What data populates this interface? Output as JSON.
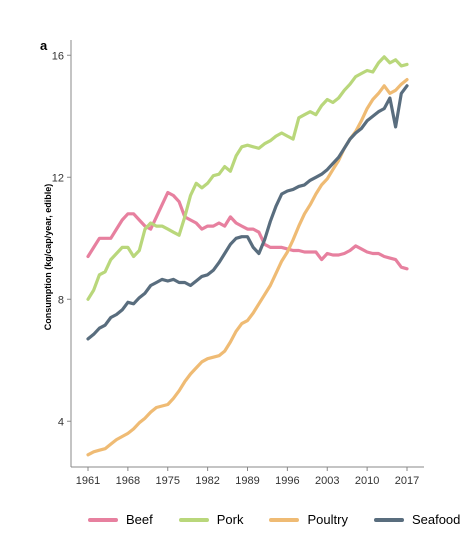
{
  "panel_label": "a",
  "colors": {
    "Beef": "#e7809f",
    "Pork": "#b9d77b",
    "Poultry": "#efbb74",
    "Seafood": "#596d7e"
  },
  "chart_data": {
    "type": "line",
    "title": "",
    "xlabel": "",
    "ylabel": "Consumption (kg/cap/year, edible)",
    "xlim": [
      1961,
      2017
    ],
    "ylim": [
      2.5,
      16.5
    ],
    "xticks": [
      1961,
      1968,
      1975,
      1982,
      1989,
      1996,
      2003,
      2010,
      2017
    ],
    "yticks": [
      4,
      8,
      12,
      16
    ],
    "grid": false,
    "legend_position": "bottom",
    "x": [
      1961,
      1962,
      1963,
      1964,
      1965,
      1966,
      1967,
      1968,
      1969,
      1970,
      1971,
      1972,
      1973,
      1974,
      1975,
      1976,
      1977,
      1978,
      1979,
      1980,
      1981,
      1982,
      1983,
      1984,
      1985,
      1986,
      1987,
      1988,
      1989,
      1990,
      1991,
      1992,
      1993,
      1994,
      1995,
      1996,
      1997,
      1998,
      1999,
      2000,
      2001,
      2002,
      2003,
      2004,
      2005,
      2006,
      2007,
      2008,
      2009,
      2010,
      2011,
      2012,
      2013,
      2014,
      2015,
      2016,
      2017
    ],
    "series": [
      {
        "name": "Beef",
        "values": [
          9.4,
          9.7,
          10.0,
          10.0,
          10.0,
          10.3,
          10.6,
          10.8,
          10.8,
          10.6,
          10.4,
          10.3,
          10.7,
          11.1,
          11.5,
          11.4,
          11.2,
          10.7,
          10.6,
          10.5,
          10.3,
          10.4,
          10.4,
          10.5,
          10.4,
          10.7,
          10.5,
          10.4,
          10.3,
          10.3,
          10.2,
          9.8,
          9.7,
          9.7,
          9.7,
          9.65,
          9.6,
          9.6,
          9.55,
          9.55,
          9.55,
          9.3,
          9.5,
          9.45,
          9.45,
          9.5,
          9.6,
          9.75,
          9.65,
          9.55,
          9.5,
          9.5,
          9.4,
          9.35,
          9.3,
          9.05,
          9.0
        ]
      },
      {
        "name": "Pork",
        "values": [
          8.0,
          8.3,
          8.8,
          8.9,
          9.3,
          9.5,
          9.7,
          9.7,
          9.4,
          9.6,
          10.3,
          10.5,
          10.4,
          10.4,
          10.3,
          10.2,
          10.1,
          10.7,
          11.4,
          11.8,
          11.65,
          11.8,
          12.05,
          12.1,
          12.35,
          12.2,
          12.7,
          13.0,
          13.05,
          13.0,
          12.95,
          13.1,
          13.2,
          13.35,
          13.45,
          13.35,
          13.25,
          13.95,
          14.05,
          14.15,
          14.05,
          14.35,
          14.55,
          14.45,
          14.6,
          14.85,
          15.05,
          15.3,
          15.4,
          15.5,
          15.45,
          15.75,
          15.95,
          15.75,
          15.85,
          15.65,
          15.7
        ]
      },
      {
        "name": "Poultry",
        "values": [
          2.9,
          3.0,
          3.05,
          3.1,
          3.25,
          3.4,
          3.5,
          3.6,
          3.75,
          3.95,
          4.1,
          4.3,
          4.45,
          4.5,
          4.55,
          4.75,
          5.0,
          5.3,
          5.55,
          5.75,
          5.95,
          6.05,
          6.1,
          6.15,
          6.3,
          6.6,
          6.95,
          7.2,
          7.3,
          7.55,
          7.85,
          8.15,
          8.45,
          8.85,
          9.25,
          9.55,
          9.95,
          10.4,
          10.8,
          11.1,
          11.45,
          11.75,
          11.95,
          12.25,
          12.55,
          12.95,
          13.25,
          13.5,
          13.85,
          14.25,
          14.55,
          14.75,
          15.0,
          14.75,
          14.85,
          15.05,
          15.2
        ]
      },
      {
        "name": "Seafood",
        "values": [
          6.7,
          6.85,
          7.05,
          7.15,
          7.4,
          7.5,
          7.65,
          7.9,
          7.85,
          8.05,
          8.2,
          8.45,
          8.55,
          8.65,
          8.6,
          8.65,
          8.55,
          8.55,
          8.45,
          8.6,
          8.75,
          8.8,
          8.95,
          9.2,
          9.5,
          9.8,
          10.0,
          10.05,
          10.05,
          9.7,
          9.5,
          9.95,
          10.55,
          11.05,
          11.45,
          11.55,
          11.6,
          11.7,
          11.75,
          11.9,
          12.0,
          12.1,
          12.25,
          12.45,
          12.65,
          12.95,
          13.25,
          13.45,
          13.6,
          13.85,
          14.0,
          14.15,
          14.25,
          14.6,
          13.65,
          14.75,
          15.0
        ]
      }
    ]
  }
}
